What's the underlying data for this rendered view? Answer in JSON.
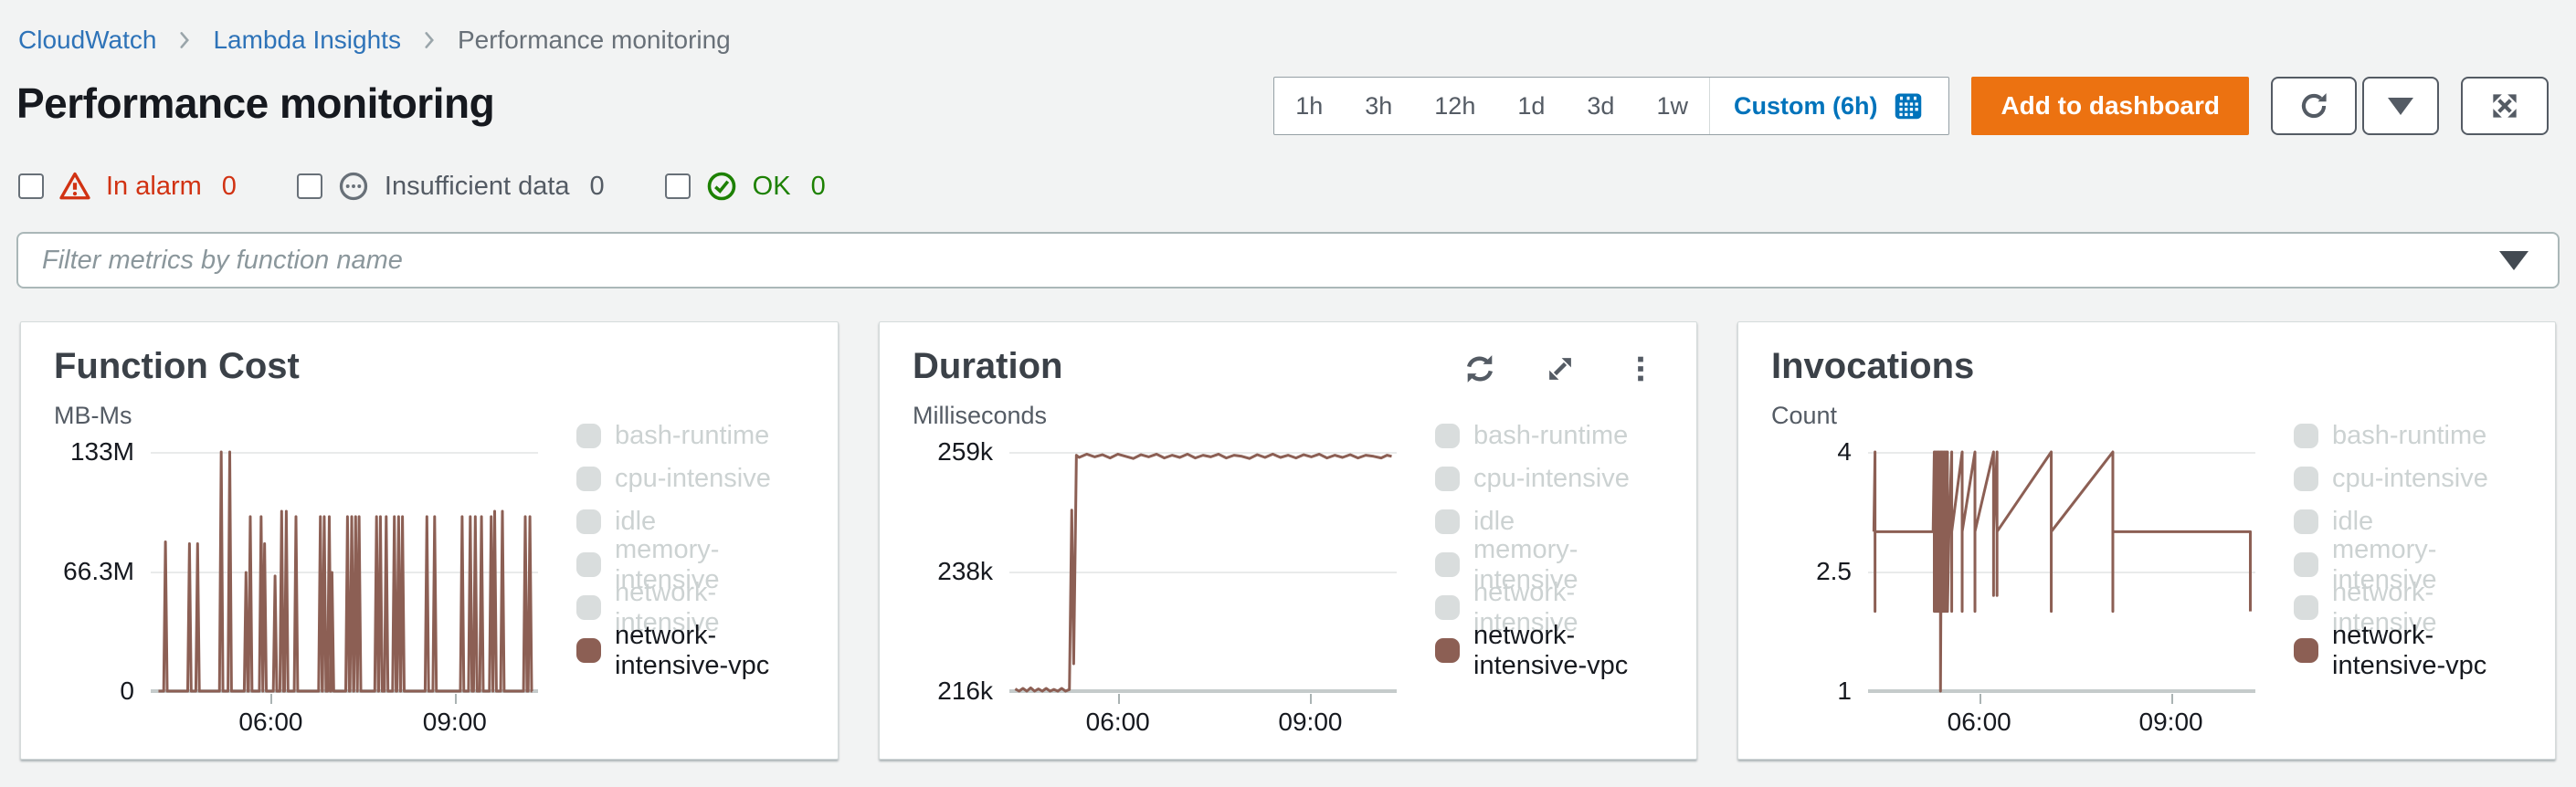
{
  "breadcrumb": {
    "items": [
      {
        "label": "CloudWatch",
        "type": "link"
      },
      {
        "label": "Lambda Insights",
        "type": "link"
      },
      {
        "label": "Performance monitoring",
        "type": "current"
      }
    ]
  },
  "page": {
    "title": "Performance monitoring"
  },
  "time_controls": {
    "presets": [
      "1h",
      "3h",
      "12h",
      "1d",
      "3d",
      "1w"
    ],
    "custom_label": "Custom (6h)"
  },
  "actions": {
    "add_to_dashboard": "Add to dashboard"
  },
  "alarm_filters": [
    {
      "label": "In alarm",
      "count": "0",
      "status": "alarm"
    },
    {
      "label": "Insufficient data",
      "count": "0",
      "status": "insufficient"
    },
    {
      "label": "OK",
      "count": "0",
      "status": "ok"
    }
  ],
  "filter": {
    "placeholder": "Filter metrics by function name"
  },
  "colors": {
    "accent_orange": "#ec7211",
    "link_blue": "#0073bb",
    "alarm_red": "#d13212",
    "ok_green": "#1d8102",
    "series_brown": "#8c5f54",
    "legend_disabled_swatch": "#d9dddd",
    "legend_disabled_text": "#ccd2d2",
    "page_background": "#f2f3f3"
  },
  "legend": {
    "active_color": "#8c5f54",
    "disabled_color": "#d9dddd",
    "items": [
      {
        "label": "bash-runtime",
        "disabled": true
      },
      {
        "label": "cpu-intensive",
        "disabled": true
      },
      {
        "label": "idle",
        "disabled": true
      },
      {
        "label": "memory-intensive",
        "disabled": true
      },
      {
        "label": "network-intensive",
        "disabled": true
      },
      {
        "label": "network-intensive-vpc",
        "disabled": false
      }
    ]
  },
  "chart_data": [
    {
      "type": "line",
      "title": "Function Cost",
      "ylabel": "MB-Ms",
      "yticks": [
        "133M",
        "66.3M",
        "0"
      ],
      "ylim": [
        0,
        133
      ],
      "xticks": [
        "06:00",
        "09:00"
      ],
      "xtick_pos": [
        31,
        78.5
      ],
      "legend_position": "right",
      "grid": true,
      "series": [
        {
          "name": "network-intensive-vpc",
          "color": "#8c5f54",
          "baseline": 0,
          "x_start": 2,
          "x_end": 98.5,
          "spike_half_width": 0.45,
          "spikes": [
            [
              3.8,
              83
            ],
            [
              10.0,
              82
            ],
            [
              12.1,
              82
            ],
            [
              18.2,
              133
            ],
            [
              20.4,
              133
            ],
            [
              24.6,
              66
            ],
            [
              25.7,
              97
            ],
            [
              28.5,
              97
            ],
            [
              29.4,
              82
            ],
            [
              32.1,
              64
            ],
            [
              33.8,
              100
            ],
            [
              35.0,
              100
            ],
            [
              37.5,
              97
            ],
            [
              43.8,
              97
            ],
            [
              44.8,
              97
            ],
            [
              46.1,
              97
            ],
            [
              46.8,
              66
            ],
            [
              50.8,
              97
            ],
            [
              51.9,
              97
            ],
            [
              52.9,
              97
            ],
            [
              53.8,
              97
            ],
            [
              58.3,
              97
            ],
            [
              59.3,
              97
            ],
            [
              60.8,
              97
            ],
            [
              62.9,
              97
            ],
            [
              64.0,
              97
            ],
            [
              65.0,
              97
            ],
            [
              71.3,
              97
            ],
            [
              73.3,
              97
            ],
            [
              80.4,
              97
            ],
            [
              82.5,
              97
            ],
            [
              83.8,
              97
            ],
            [
              85.4,
              97
            ],
            [
              87.9,
              97
            ],
            [
              88.8,
              100
            ],
            [
              90.8,
              100
            ],
            [
              96.7,
              97
            ],
            [
              97.9,
              97
            ]
          ]
        }
      ]
    },
    {
      "type": "line",
      "title": "Duration",
      "ylabel": "Milliseconds",
      "yticks": [
        "259k",
        "238k",
        "216k"
      ],
      "ylim": [
        216,
        259.6
      ],
      "xticks": [
        "06:00",
        "09:00"
      ],
      "xtick_pos": [
        28,
        77.7
      ],
      "legend_position": "right",
      "grid": true,
      "has_toolbar": true,
      "series": [
        {
          "name": "network-intensive-vpc",
          "color": "#8c5f54",
          "points": [
            [
              1.5,
              216.4
            ],
            [
              2.5,
              215.9
            ],
            [
              3.5,
              216.5
            ],
            [
              4.5,
              216.0
            ],
            [
              5.5,
              216.6
            ],
            [
              6.5,
              215.9
            ],
            [
              7.5,
              216.4
            ],
            [
              8.5,
              216.0
            ],
            [
              9.5,
              216.5
            ],
            [
              10.5,
              215.9
            ],
            [
              11.5,
              216.3
            ],
            [
              12.5,
              216.0
            ],
            [
              13.5,
              216.5
            ],
            [
              14.5,
              216.0
            ],
            [
              15.5,
              216.3
            ],
            [
              16.1,
              249
            ],
            [
              16.6,
              221
            ],
            [
              17.3,
              259.0
            ],
            [
              18,
              258.6
            ],
            [
              20,
              259.2
            ],
            [
              22,
              258.7
            ],
            [
              24,
              259.1
            ],
            [
              26,
              258.5
            ],
            [
              28,
              259.2
            ],
            [
              30,
              258.8
            ],
            [
              32,
              258.4
            ],
            [
              34,
              259.1
            ],
            [
              36,
              258.7
            ],
            [
              38,
              259.2
            ],
            [
              40,
              258.5
            ],
            [
              42,
              259.0
            ],
            [
              44,
              258.6
            ],
            [
              46,
              259.2
            ],
            [
              48,
              258.5
            ],
            [
              50,
              259.0
            ],
            [
              52,
              258.7
            ],
            [
              54,
              259.2
            ],
            [
              56,
              258.5
            ],
            [
              58,
              259.0
            ],
            [
              60,
              258.8
            ],
            [
              62,
              258.4
            ],
            [
              64,
              259.1
            ],
            [
              66,
              258.6
            ],
            [
              68,
              259.2
            ],
            [
              70,
              258.6
            ],
            [
              72,
              259.0
            ],
            [
              74,
              258.5
            ],
            [
              76,
              259.1
            ],
            [
              78,
              258.7
            ],
            [
              80,
              259.2
            ],
            [
              82,
              258.5
            ],
            [
              84,
              259.0
            ],
            [
              86,
              258.6
            ],
            [
              88,
              259.1
            ],
            [
              90,
              258.5
            ],
            [
              92,
              259.0
            ],
            [
              94,
              258.8
            ],
            [
              96,
              258.5
            ],
            [
              97.5,
              259.0
            ],
            [
              98.7,
              258.8
            ]
          ]
        }
      ]
    },
    {
      "type": "line",
      "title": "Invocations",
      "ylabel": "Count",
      "yticks": [
        "4",
        "2.5",
        "1"
      ],
      "ylim": [
        1,
        4
      ],
      "xticks": [
        "06:00",
        "09:00"
      ],
      "xtick_pos": [
        28.7,
        78.2
      ],
      "legend_position": "right",
      "grid": true,
      "series": [
        {
          "name": "network-intensive-vpc",
          "color": "#8c5f54",
          "points": [
            [
              1.5,
              3
            ],
            [
              1.8,
              4
            ],
            [
              1.8,
              2
            ],
            [
              1.8,
              3
            ],
            [
              16.8,
              3
            ],
            [
              17.1,
              4
            ],
            [
              17.1,
              2
            ],
            [
              17.4,
              4
            ],
            [
              17.4,
              2
            ],
            [
              17.7,
              4
            ],
            [
              17.7,
              2
            ],
            [
              18.0,
              4
            ],
            [
              18.0,
              2
            ],
            [
              18.3,
              4
            ],
            [
              18.3,
              2
            ],
            [
              18.7,
              4
            ],
            [
              18.7,
              1
            ],
            [
              19.0,
              4
            ],
            [
              19.0,
              2
            ],
            [
              19.3,
              4
            ],
            [
              19.3,
              2
            ],
            [
              19.7,
              4
            ],
            [
              19.7,
              2
            ],
            [
              20.1,
              4
            ],
            [
              20.1,
              2
            ],
            [
              20.5,
              4
            ],
            [
              20.5,
              2
            ],
            [
              20.9,
              3
            ],
            [
              21.6,
              4
            ],
            [
              21.6,
              2
            ],
            [
              21.6,
              3
            ],
            [
              24.3,
              4
            ],
            [
              24.3,
              2
            ],
            [
              24.3,
              3
            ],
            [
              27.6,
              4
            ],
            [
              27.6,
              2
            ],
            [
              27.6,
              3
            ],
            [
              32.4,
              4
            ],
            [
              32.4,
              2.2
            ],
            [
              32.4,
              3
            ],
            [
              33.3,
              4
            ],
            [
              33.3,
              2.2
            ],
            [
              33.3,
              3
            ],
            [
              47.3,
              4
            ],
            [
              47.3,
              2
            ],
            [
              47.3,
              3
            ],
            [
              63.2,
              4
            ],
            [
              63.2,
              2
            ],
            [
              63.2,
              3
            ],
            [
              98.7,
              3
            ],
            [
              98.7,
              2
            ]
          ]
        }
      ]
    }
  ]
}
